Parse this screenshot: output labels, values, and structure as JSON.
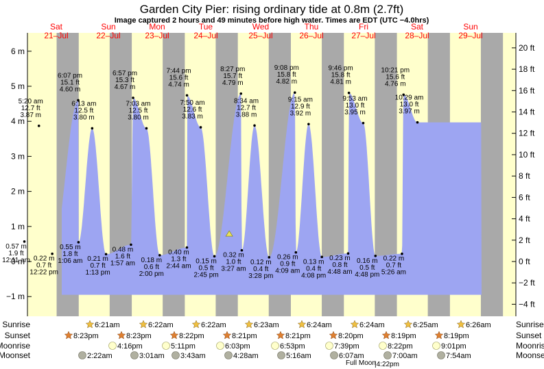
{
  "title": "Garden City Pier: rising  ordinary tide at 0.8m (2.7ft)",
  "subtitle": "Image captured 2 hours and 49 minutes before high water. Times are EDT (UTC −4.0hrs)",
  "colors": {
    "day": "#ffffcc",
    "night": "#a9a9a9",
    "tide": "#9da5f2",
    "date_text": "#ff0000",
    "sun_icon": "#f0c040",
    "sunset_icon": "#e08030",
    "moonrise_icon": "#ffffcc",
    "moonset_icon": "#b0b0a0"
  },
  "days": [
    {
      "name": "Sat",
      "date": "21–Jul"
    },
    {
      "name": "Sun",
      "date": "22–Jul"
    },
    {
      "name": "Mon",
      "date": "23–Jul"
    },
    {
      "name": "Tue",
      "date": "24–Jul"
    },
    {
      "name": "Wed",
      "date": "25–Jul"
    },
    {
      "name": "Thu",
      "date": "26–Jul"
    },
    {
      "name": "Fri",
      "date": "27–Jul"
    },
    {
      "name": "Sat",
      "date": "28–Jul"
    },
    {
      "name": "Sun",
      "date": "29–Jul"
    }
  ],
  "chart_data": {
    "type": "area",
    "x_unit": "days from Sat 21-Jul 00:00 EDT",
    "ylim_m": [
      -1.5,
      6.3
    ],
    "yticks_m": [
      "−1 m",
      "0 m",
      "1 m",
      "2 m",
      "3 m",
      "4 m",
      "5 m",
      "6 m"
    ],
    "yticks_ft": [
      "−4 ft",
      "−2 ft",
      "0 ft",
      "2 ft",
      "4 ft",
      "6 ft",
      "8 ft",
      "10 ft",
      "12 ft",
      "14 ft",
      "16 ft",
      "18 ft",
      "20 ft"
    ],
    "current_level_m": 0.8,
    "tides": [
      {
        "t": 0.24,
        "m": 0.57,
        "lines": [
          "0.57 m",
          "1.9 ft",
          "12:11 am"
        ],
        "type": "low"
      },
      {
        "t": 0.514,
        "m": 3.87,
        "lines": [
          "5:20 am",
          "12.7 ft",
          "3.87 m"
        ],
        "type": "high"
      },
      {
        "t": 0.765,
        "m": 0.22,
        "lines": [
          "0.22 m",
          "0.7 ft",
          "12:22 pm"
        ],
        "type": "low"
      },
      {
        "t": 1.255,
        "m": 4.6,
        "lines": [
          "6:07 pm",
          "15.1 ft",
          "4.60 m"
        ],
        "type": "high"
      },
      {
        "t": 1.26,
        "m": 0.55,
        "lines": [
          "0.55 m",
          "1.8 ft",
          "1:06 am"
        ],
        "type": "low"
      },
      {
        "t": 1.518,
        "m": 3.8,
        "lines": [
          "6:13 am",
          "12.5 ft",
          "3.80 m"
        ],
        "type": "high"
      },
      {
        "t": 1.78,
        "m": 0.21,
        "lines": [
          "0.21 m",
          "0.7 ft",
          "1:13 pm"
        ],
        "type": "low"
      },
      {
        "t": 2.29,
        "m": 4.67,
        "lines": [
          "6:57 pm",
          "15.3 ft",
          "4.67 m"
        ],
        "type": "high"
      },
      {
        "t": 2.25,
        "m": 0.48,
        "lines": [
          "0.48 m",
          "1.6 ft",
          "1:57 am"
        ],
        "type": "low"
      },
      {
        "t": 2.542,
        "m": 3.8,
        "lines": [
          "7:03 am",
          "12.5 ft",
          "3.80 m"
        ],
        "type": "high"
      },
      {
        "t": 2.792,
        "m": 0.18,
        "lines": [
          "0.18 m",
          "0.6 ft",
          "2:00 pm"
        ],
        "type": "low"
      },
      {
        "t": 3.306,
        "m": 4.74,
        "lines": [
          "7:44 pm",
          "15.6 ft",
          "4.74 m"
        ],
        "type": "high"
      },
      {
        "t": 3.305,
        "m": 0.4,
        "lines": [
          "0.40 m",
          "1.3 ft",
          "2:44 am"
        ],
        "type": "low"
      },
      {
        "t": 3.565,
        "m": 3.83,
        "lines": [
          "7:50 am",
          "12.6 ft",
          "3.83 m"
        ],
        "type": "high"
      },
      {
        "t": 3.824,
        "m": 0.15,
        "lines": [
          "0.15 m",
          "0.5 ft",
          "2:45 pm"
        ],
        "type": "low"
      },
      {
        "t": 4.324,
        "m": 4.79,
        "lines": [
          "8:27 pm",
          "15.7 ft",
          "4.79 m"
        ],
        "type": "high"
      },
      {
        "t": 4.34,
        "m": 0.32,
        "lines": [
          "0.32 m",
          "1.0 ft",
          "3:27 am"
        ],
        "type": "low"
      },
      {
        "t": 4.58,
        "m": 3.88,
        "lines": [
          "8:34 am",
          "12.7 ft",
          "3.88 m"
        ],
        "type": "high"
      },
      {
        "t": 4.855,
        "m": 0.12,
        "lines": [
          "0.12 m",
          "0.4 ft",
          "3:28 pm"
        ],
        "type": "low"
      },
      {
        "t": 5.34,
        "m": 4.82,
        "lines": [
          "9:08 pm",
          "15.8 ft",
          "4.82 m"
        ],
        "type": "high"
      },
      {
        "t": 5.36,
        "m": 0.26,
        "lines": [
          "0.26 m",
          "0.9 ft",
          "4:09 am"
        ],
        "type": "low"
      },
      {
        "t": 5.6,
        "m": 3.92,
        "lines": [
          "9:15 am",
          "12.9 ft",
          "3.92 m"
        ],
        "type": "high"
      },
      {
        "t": 5.85,
        "m": 0.13,
        "lines": [
          "0.13 m",
          "0.4 ft",
          "4:08 pm"
        ],
        "type": "low"
      },
      {
        "t": 6.36,
        "m": 4.81,
        "lines": [
          "9:46 pm",
          "15.8 ft",
          "4.81 m"
        ],
        "type": "high"
      },
      {
        "t": 6.345,
        "m": 0.23,
        "lines": [
          "0.23 m",
          "0.8 ft",
          "4:48 am"
        ],
        "type": "low"
      },
      {
        "t": 6.63,
        "m": 3.95,
        "lines": [
          "9:53 am",
          "13.0 ft",
          "3.95 m"
        ],
        "type": "high"
      },
      {
        "t": 6.86,
        "m": 0.16,
        "lines": [
          "0.16 m",
          "0.5 ft",
          "4:48 pm"
        ],
        "type": "low"
      },
      {
        "t": 7.39,
        "m": 4.76,
        "lines": [
          "10:21 pm",
          "15.6 ft",
          "4.76 m"
        ],
        "type": "high"
      },
      {
        "t": 7.36,
        "m": 0.22,
        "lines": [
          "0.22 m",
          "0.7 ft",
          "5:26 am"
        ],
        "type": "low"
      },
      {
        "t": 7.652,
        "m": 3.97,
        "lines": [
          "10:29 am",
          "13.0 ft",
          "3.97 m"
        ],
        "type": "high"
      }
    ],
    "sun_rows": {
      "Sunrise": [
        "6:21am",
        "6:22am",
        "6:22am",
        "6:23am",
        "6:24am",
        "6:24am",
        "6:25am",
        "6:26am"
      ],
      "Sunset": [
        "8:23pm",
        "8:23pm",
        "8:22pm",
        "8:21pm",
        "8:21pm",
        "8:20pm",
        "8:19pm",
        "8:19pm"
      ],
      "Moonrise": [
        "4:16pm",
        "5:11pm",
        "6:03pm",
        "6:53pm",
        "7:39pm",
        "8:22pm",
        "9:01pm"
      ],
      "Moonset": [
        "2:22am",
        "3:01am",
        "3:43am",
        "4:28am",
        "5:16am",
        "6:07am",
        "7:00am",
        "7:54am"
      ]
    },
    "row_labels": [
      "Sunrise",
      "Sunset",
      "Moonrise",
      "Moonset"
    ],
    "full_moon_label": "Full Moon",
    "full_moon_time": "4:22pm"
  }
}
